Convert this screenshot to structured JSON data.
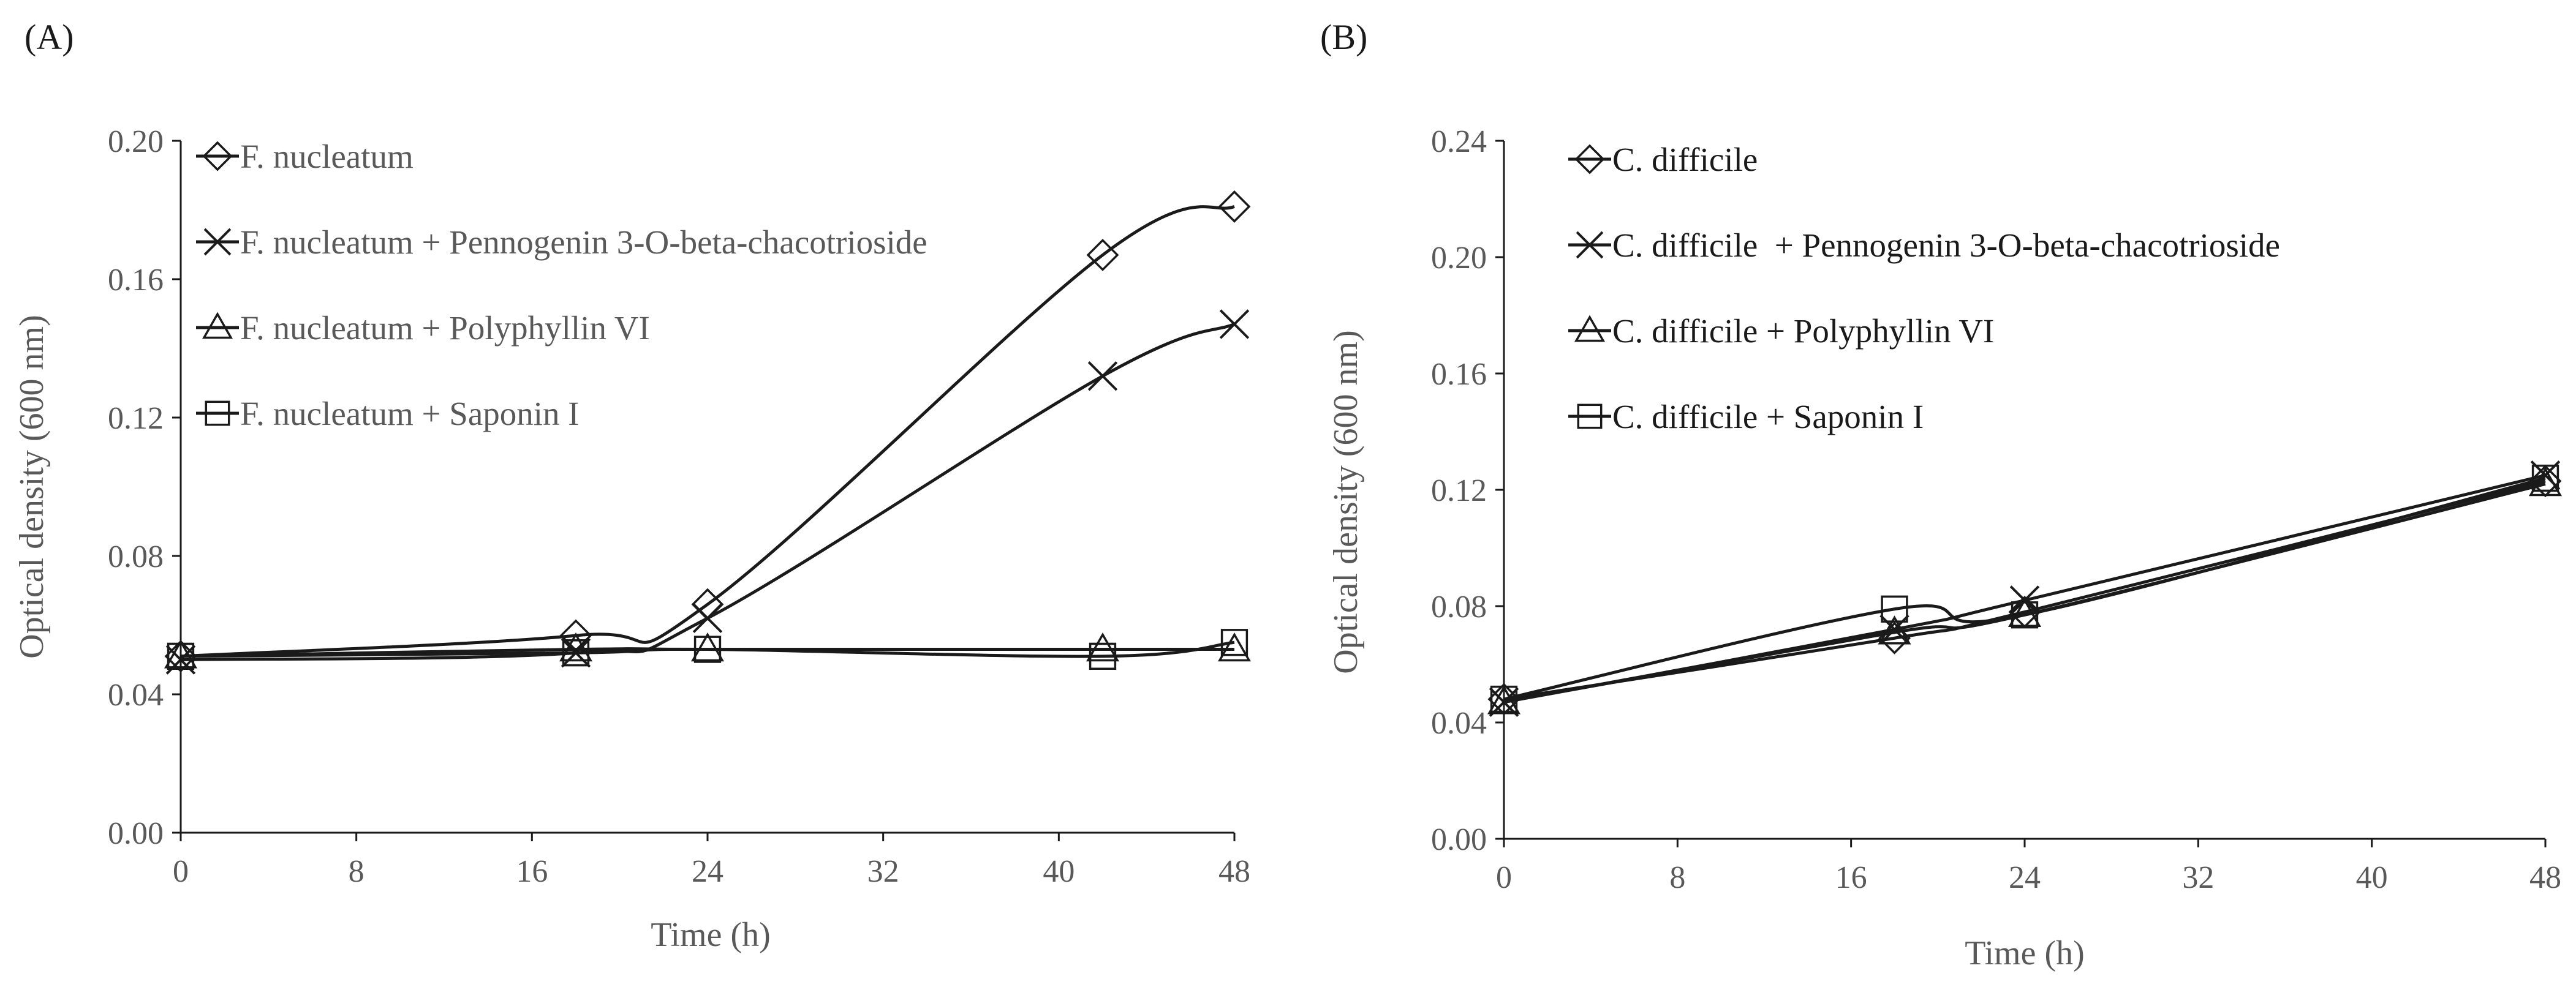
{
  "chart_data": [
    {
      "type": "line",
      "panel_label": "(A)",
      "xlabel": "Time (h)",
      "ylabel": "Optical density (600 nm)",
      "xlim": [
        0,
        48
      ],
      "ylim": [
        0.0,
        0.2
      ],
      "xticks": [
        0,
        8,
        16,
        24,
        32,
        40,
        48
      ],
      "xtick_labels": [
        "0",
        "8",
        "16",
        "24",
        "32",
        "40",
        "48"
      ],
      "yticks": [
        0.0,
        0.04,
        0.08,
        0.12,
        0.16,
        0.2
      ],
      "ytick_labels": [
        "0.00",
        "0.04",
        "0.08",
        "0.12",
        "0.16",
        "0.20"
      ],
      "legend_position": "top-left",
      "x": [
        0,
        18,
        24,
        42,
        48
      ],
      "series": [
        {
          "name": "F. nucleatum",
          "marker": "diamond",
          "values": [
            0.051,
            0.057,
            0.066,
            0.167,
            0.181
          ]
        },
        {
          "name": "F. nucleatum + Pennogenin 3-O-beta-chacotrioside",
          "marker": "x",
          "values": [
            0.05,
            0.052,
            0.062,
            0.132,
            0.147
          ]
        },
        {
          "name": "F. nucleatum + Polyphyllin VI",
          "marker": "triangle",
          "values": [
            0.051,
            0.053,
            0.053,
            0.053,
            0.053
          ]
        },
        {
          "name": "F. nucleatum + Saponin I",
          "marker": "square",
          "values": [
            0.051,
            0.052,
            0.053,
            0.051,
            0.055
          ]
        }
      ]
    },
    {
      "type": "line",
      "panel_label": "(B)",
      "xlabel": "Time (h)",
      "ylabel": "Optical density (600 nm)",
      "xlim": [
        0,
        48
      ],
      "ylim": [
        0.0,
        0.24
      ],
      "xticks": [
        0,
        8,
        16,
        24,
        32,
        40,
        48
      ],
      "xtick_labels": [
        "0",
        "8",
        "16",
        "24",
        "32",
        "40",
        "48"
      ],
      "yticks": [
        0.0,
        0.04,
        0.08,
        0.12,
        0.16,
        0.2,
        0.24
      ],
      "ytick_labels": [
        "0.00",
        "0.04",
        "0.08",
        "0.12",
        "0.16",
        "0.20",
        "0.24"
      ],
      "legend_position": "top-left",
      "x": [
        0,
        18,
        24,
        48
      ],
      "series": [
        {
          "name": "C. difficile",
          "marker": "diamond",
          "values": [
            0.048,
            0.069,
            0.078,
            0.123
          ]
        },
        {
          "name": "C. difficile  + Pennogenin 3-O-beta-chacotrioside",
          "marker": "x",
          "values": [
            0.047,
            0.072,
            0.082,
            0.125
          ]
        },
        {
          "name": "C. difficile + Polyphyllin VI",
          "marker": "triangle",
          "values": [
            0.047,
            0.071,
            0.077,
            0.122
          ]
        },
        {
          "name": "C. difficile + Saponin I",
          "marker": "square",
          "values": [
            0.048,
            0.079,
            0.077,
            0.124
          ]
        }
      ]
    }
  ]
}
